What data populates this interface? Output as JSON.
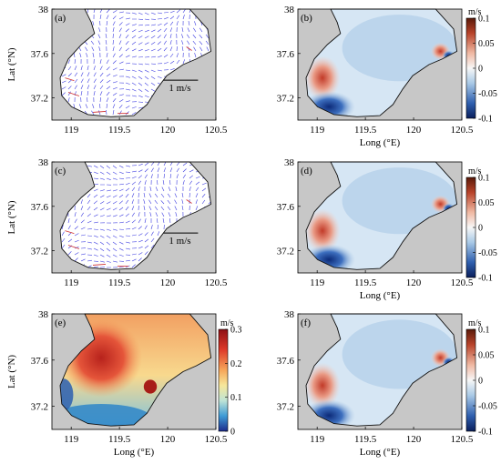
{
  "chart_data": [
    {
      "type": "vector-map",
      "panel_label": "(a)",
      "xlabel": "",
      "ylabel": "Lat (°N)",
      "x_ticks": [
        "119",
        "119.5",
        "120",
        "120.5"
      ],
      "y_ticks": [
        "38",
        "37.6",
        "37.2"
      ],
      "xlim": [
        118.8,
        120.5
      ],
      "ylim": [
        37.0,
        38.0
      ],
      "scale_label": "1 m/s",
      "vector_color": "#3b3be0"
    },
    {
      "type": "heatmap-map",
      "panel_label": "(b)",
      "xlabel": "Long (°E)",
      "ylabel": "",
      "x_ticks": [
        "119",
        "119.5",
        "120",
        "120.5"
      ],
      "y_ticks": [
        "38",
        "37.6",
        "37.2"
      ],
      "xlim": [
        118.8,
        120.5
      ],
      "ylim": [
        37.0,
        38.0
      ],
      "colorbar": {
        "unit": "m/s",
        "ticks": [
          "0.1",
          "0.05",
          "0",
          "-0.05",
          "-0.1"
        ],
        "range": [
          -0.1,
          0.1
        ],
        "colormap": "blue-white-red"
      }
    },
    {
      "type": "vector-map",
      "panel_label": "(c)",
      "xlabel": "",
      "ylabel": "Lat (°N)",
      "x_ticks": [
        "119",
        "119.5",
        "120",
        "120.5"
      ],
      "y_ticks": [
        "38",
        "37.6",
        "37.2"
      ],
      "xlim": [
        118.8,
        120.5
      ],
      "ylim": [
        37.0,
        38.0
      ],
      "scale_label": "1 m/s",
      "vector_color": "#3b3be0"
    },
    {
      "type": "heatmap-map",
      "panel_label": "(d)",
      "xlabel": "Long (°E)",
      "ylabel": "",
      "x_ticks": [
        "119",
        "119.5",
        "120",
        "120.5"
      ],
      "y_ticks": [
        "38",
        "37.6",
        "37.2"
      ],
      "xlim": [
        118.8,
        120.5
      ],
      "ylim": [
        37.0,
        38.0
      ],
      "colorbar": {
        "unit": "m/s",
        "ticks": [
          "0.1",
          "0.05",
          "0",
          "-0.05",
          "-0.1"
        ],
        "range": [
          -0.1,
          0.1
        ],
        "colormap": "blue-white-red"
      }
    },
    {
      "type": "heatmap-map",
      "panel_label": "(e)",
      "xlabel": "Long (°E)",
      "ylabel": "Lat (°N)",
      "x_ticks": [
        "119",
        "119.5",
        "120",
        "120.5"
      ],
      "y_ticks": [
        "38",
        "37.6",
        "37.2"
      ],
      "xlim": [
        118.8,
        120.5
      ],
      "ylim": [
        37.0,
        38.0
      ],
      "colorbar": {
        "unit": "m/s",
        "ticks": [
          "0.3",
          "0.2",
          "0.1",
          "0"
        ],
        "range": [
          0,
          0.3
        ],
        "colormap": "blue-yellow-red"
      }
    },
    {
      "type": "heatmap-map",
      "panel_label": "(f)",
      "xlabel": "Long (°E)",
      "ylabel": "",
      "x_ticks": [
        "119",
        "119.5",
        "120",
        "120.5"
      ],
      "y_ticks": [
        "38",
        "37.6",
        "37.2"
      ],
      "xlim": [
        118.8,
        120.5
      ],
      "ylim": [
        37.0,
        38.0
      ],
      "colorbar": {
        "unit": "m/s",
        "ticks": [
          "0.1",
          "0.05",
          "0",
          "-0.05",
          "-0.1"
        ],
        "range": [
          -0.1,
          0.1
        ],
        "colormap": "blue-white-red"
      }
    }
  ]
}
